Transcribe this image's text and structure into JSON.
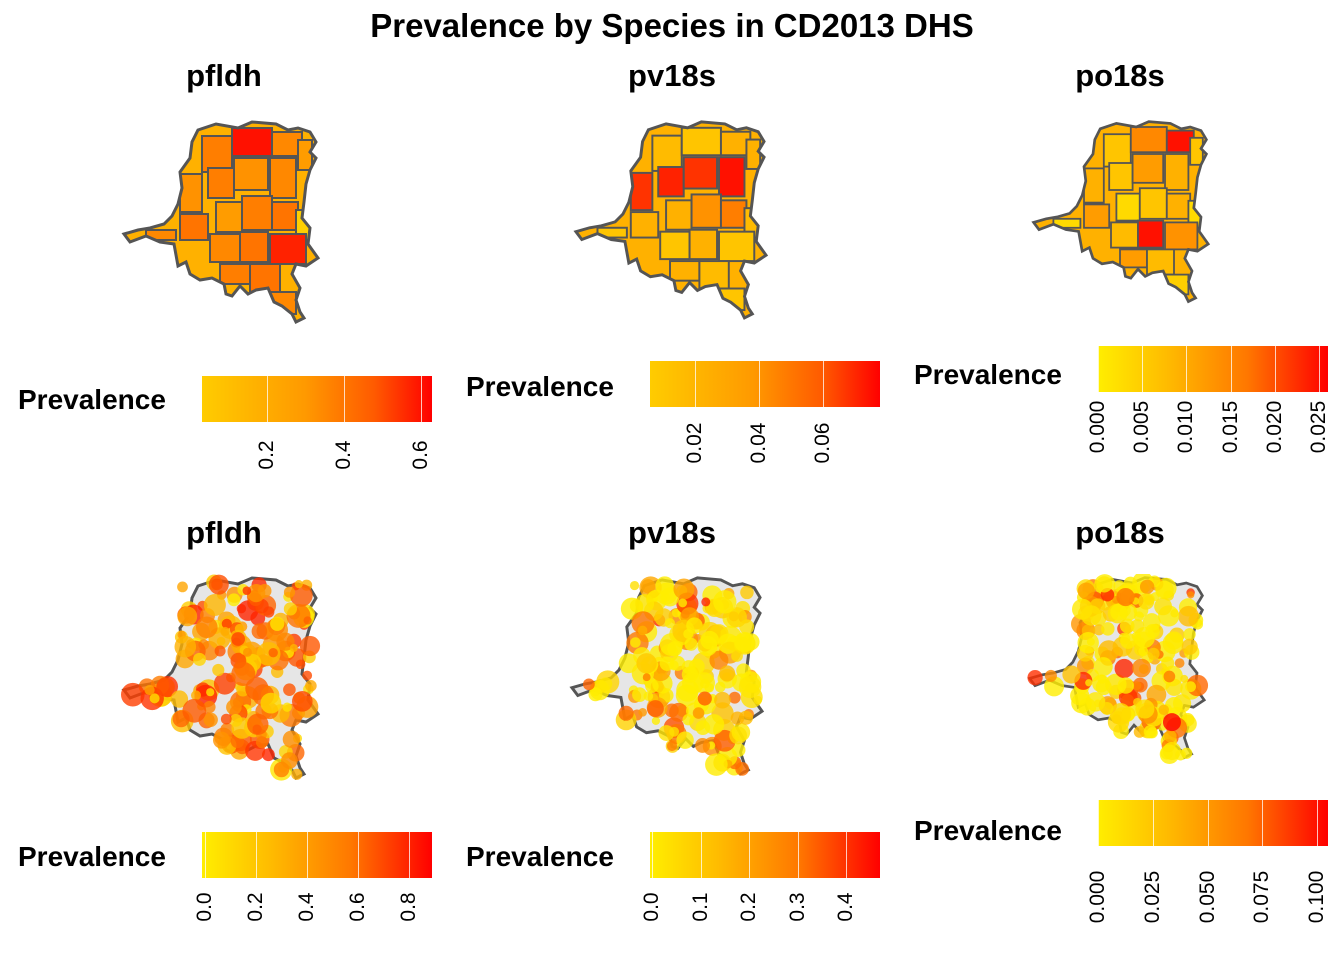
{
  "title": "Prevalence by Species in CD2013 DHS",
  "panels": [
    {
      "title": "pfldh",
      "kind": "choropleth",
      "legend": {
        "title": "Prevalence",
        "ticks": [
          "0.2",
          "0.4",
          "0.6"
        ],
        "range": [
          0.03,
          0.63
        ],
        "values": [
          0.2,
          0.4,
          0.6
        ]
      }
    },
    {
      "title": "pv18s",
      "kind": "choropleth",
      "legend": {
        "title": "Prevalence",
        "ticks": [
          "0.02",
          "0.04",
          "0.06"
        ],
        "range": [
          0.006,
          0.078
        ],
        "values": [
          0.02,
          0.04,
          0.06
        ]
      }
    },
    {
      "title": "po18s",
      "kind": "choropleth",
      "legend": {
        "title": "Prevalence",
        "ticks": [
          "0.000",
          "0.005",
          "0.010",
          "0.015",
          "0.020",
          "0.025"
        ],
        "range": [
          0,
          0.026
        ],
        "values": [
          0,
          0.005,
          0.01,
          0.015,
          0.02,
          0.025
        ]
      }
    },
    {
      "title": "pfldh",
      "kind": "points",
      "legend": {
        "title": "Prevalence",
        "ticks": [
          "0.0",
          "0.2",
          "0.4",
          "0.6",
          "0.8"
        ],
        "range": [
          -0.01,
          0.89
        ],
        "values": [
          0,
          0.2,
          0.4,
          0.6,
          0.8
        ]
      }
    },
    {
      "title": "pv18s",
      "kind": "points",
      "legend": {
        "title": "Prevalence",
        "ticks": [
          "0.0",
          "0.1",
          "0.2",
          "0.3",
          "0.4"
        ],
        "range": [
          -0.005,
          0.47
        ],
        "values": [
          0,
          0.1,
          0.2,
          0.3,
          0.4
        ]
      }
    },
    {
      "title": "po18s",
      "kind": "points",
      "legend": {
        "title": "Prevalence",
        "ticks": [
          "0.000",
          "0.025",
          "0.050",
          "0.075",
          "0.100"
        ],
        "range": [
          0,
          0.105
        ],
        "values": [
          0,
          0.025,
          0.05,
          0.075,
          0.1
        ]
      }
    }
  ],
  "colors": {
    "low": "#ffee00",
    "mid": "#ff9900",
    "high": "#ff0000",
    "border": "#555555",
    "land": "#e6e6e6"
  }
}
